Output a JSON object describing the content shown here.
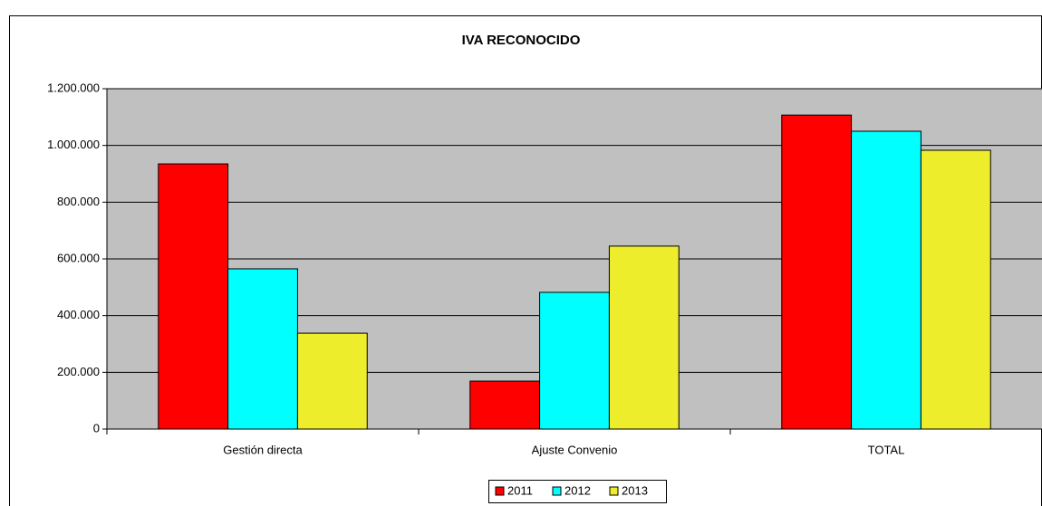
{
  "chart_data": {
    "type": "bar",
    "title": "IVA RECONOCIDO",
    "categories": [
      "Gestión directa",
      "Ajuste Convenio",
      "TOTAL"
    ],
    "series": [
      {
        "name": "2011",
        "color": "#ff0000",
        "values": [
          935000,
          169000,
          1107000
        ]
      },
      {
        "name": "2012",
        "color": "#00ffff",
        "values": [
          565000,
          482000,
          1050000
        ]
      },
      {
        "name": "2013",
        "color": "#eded2b",
        "values": [
          338000,
          645000,
          983000
        ]
      }
    ],
    "ylim": [
      0,
      1200000
    ],
    "yticks": [
      0,
      {
        "value": 200000,
        "label": "200.000"
      },
      {
        "value": 400000,
        "label": "400.000"
      },
      {
        "value": 600000,
        "label": "600.000"
      },
      {
        "value": 800000,
        "label": "800.000"
      },
      {
        "value": 1000000,
        "label": "1.000.000"
      },
      {
        "value": 1200000,
        "label": "1.200.000"
      }
    ],
    "grid": true,
    "legend": "bottom"
  }
}
